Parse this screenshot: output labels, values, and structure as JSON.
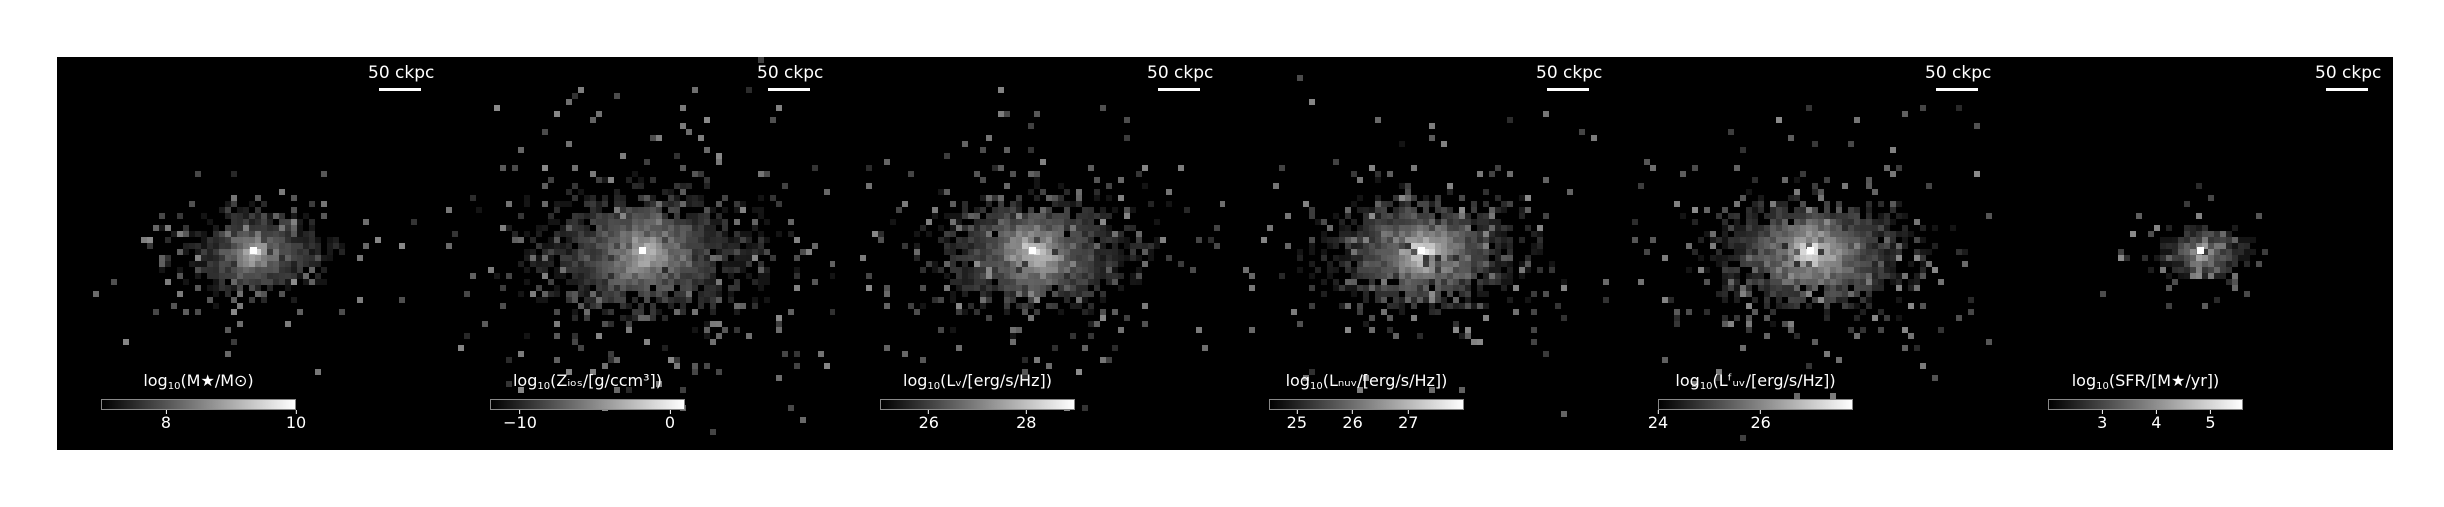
{
  "panels": [
    {
      "scalebar": "50 ckpc",
      "colorbar": {
        "pre": "log",
        "sub": "10",
        "post": "(M★/M⊙)",
        "min": 7,
        "max": 10,
        "ticks": [
          {
            "value": 8,
            "label": "8"
          },
          {
            "value": 10,
            "label": "10"
          }
        ]
      },
      "blob": {
        "spread": 0.55,
        "density": 0.95,
        "bright": 0.9
      }
    },
    {
      "scalebar": "50 ckpc",
      "colorbar": {
        "pre": "log",
        "sub": "10",
        "post": "(Zᵢₒₛ/[g/ccm³])",
        "min": -12,
        "max": 1,
        "ticks": [
          {
            "value": -10,
            "label": "−10"
          },
          {
            "value": 0,
            "label": "0"
          }
        ]
      },
      "blob": {
        "spread": 1.0,
        "density": 1.2,
        "bright": 0.8
      }
    },
    {
      "scalebar": "50 ckpc",
      "colorbar": {
        "pre": "log",
        "sub": "10",
        "post": "(Lᵥ/[erg/s/Hz])",
        "min": 25,
        "max": 29,
        "ticks": [
          {
            "value": 26,
            "label": "26"
          },
          {
            "value": 28,
            "label": "28"
          }
        ]
      },
      "blob": {
        "spread": 0.85,
        "density": 1.1,
        "bright": 0.95
      }
    },
    {
      "scalebar": "50 ckpc",
      "colorbar": {
        "pre": "log",
        "sub": "10",
        "post": "(Lₙᵤᵥ/[erg/s/Hz])",
        "min": 24.5,
        "max": 28,
        "ticks": [
          {
            "value": 25,
            "label": "25"
          },
          {
            "value": 26,
            "label": "26"
          },
          {
            "value": 27,
            "label": "27"
          }
        ]
      },
      "blob": {
        "spread": 0.85,
        "density": 1.15,
        "bright": 1.0
      }
    },
    {
      "scalebar": "50 ckpc",
      "colorbar": {
        "pre": "log",
        "sub": "10",
        "post": "(Lᶠᵤᵥ/[erg/s/Hz])",
        "min": 24,
        "max": 27.8,
        "ticks": [
          {
            "value": 24,
            "label": "24"
          },
          {
            "value": 26,
            "label": "26"
          }
        ]
      },
      "blob": {
        "spread": 0.85,
        "density": 1.15,
        "bright": 1.0
      }
    },
    {
      "scalebar": "50 ckpc",
      "colorbar": {
        "pre": "log",
        "sub": "10",
        "post": "(SFR/[M★/yr])",
        "min": 2,
        "max": 5.6,
        "ticks": [
          {
            "value": 3,
            "label": "3"
          },
          {
            "value": 4,
            "label": "4"
          },
          {
            "value": 5,
            "label": "5"
          }
        ]
      },
      "blob": {
        "spread": 0.35,
        "density": 0.6,
        "bright": 0.85
      }
    }
  ]
}
